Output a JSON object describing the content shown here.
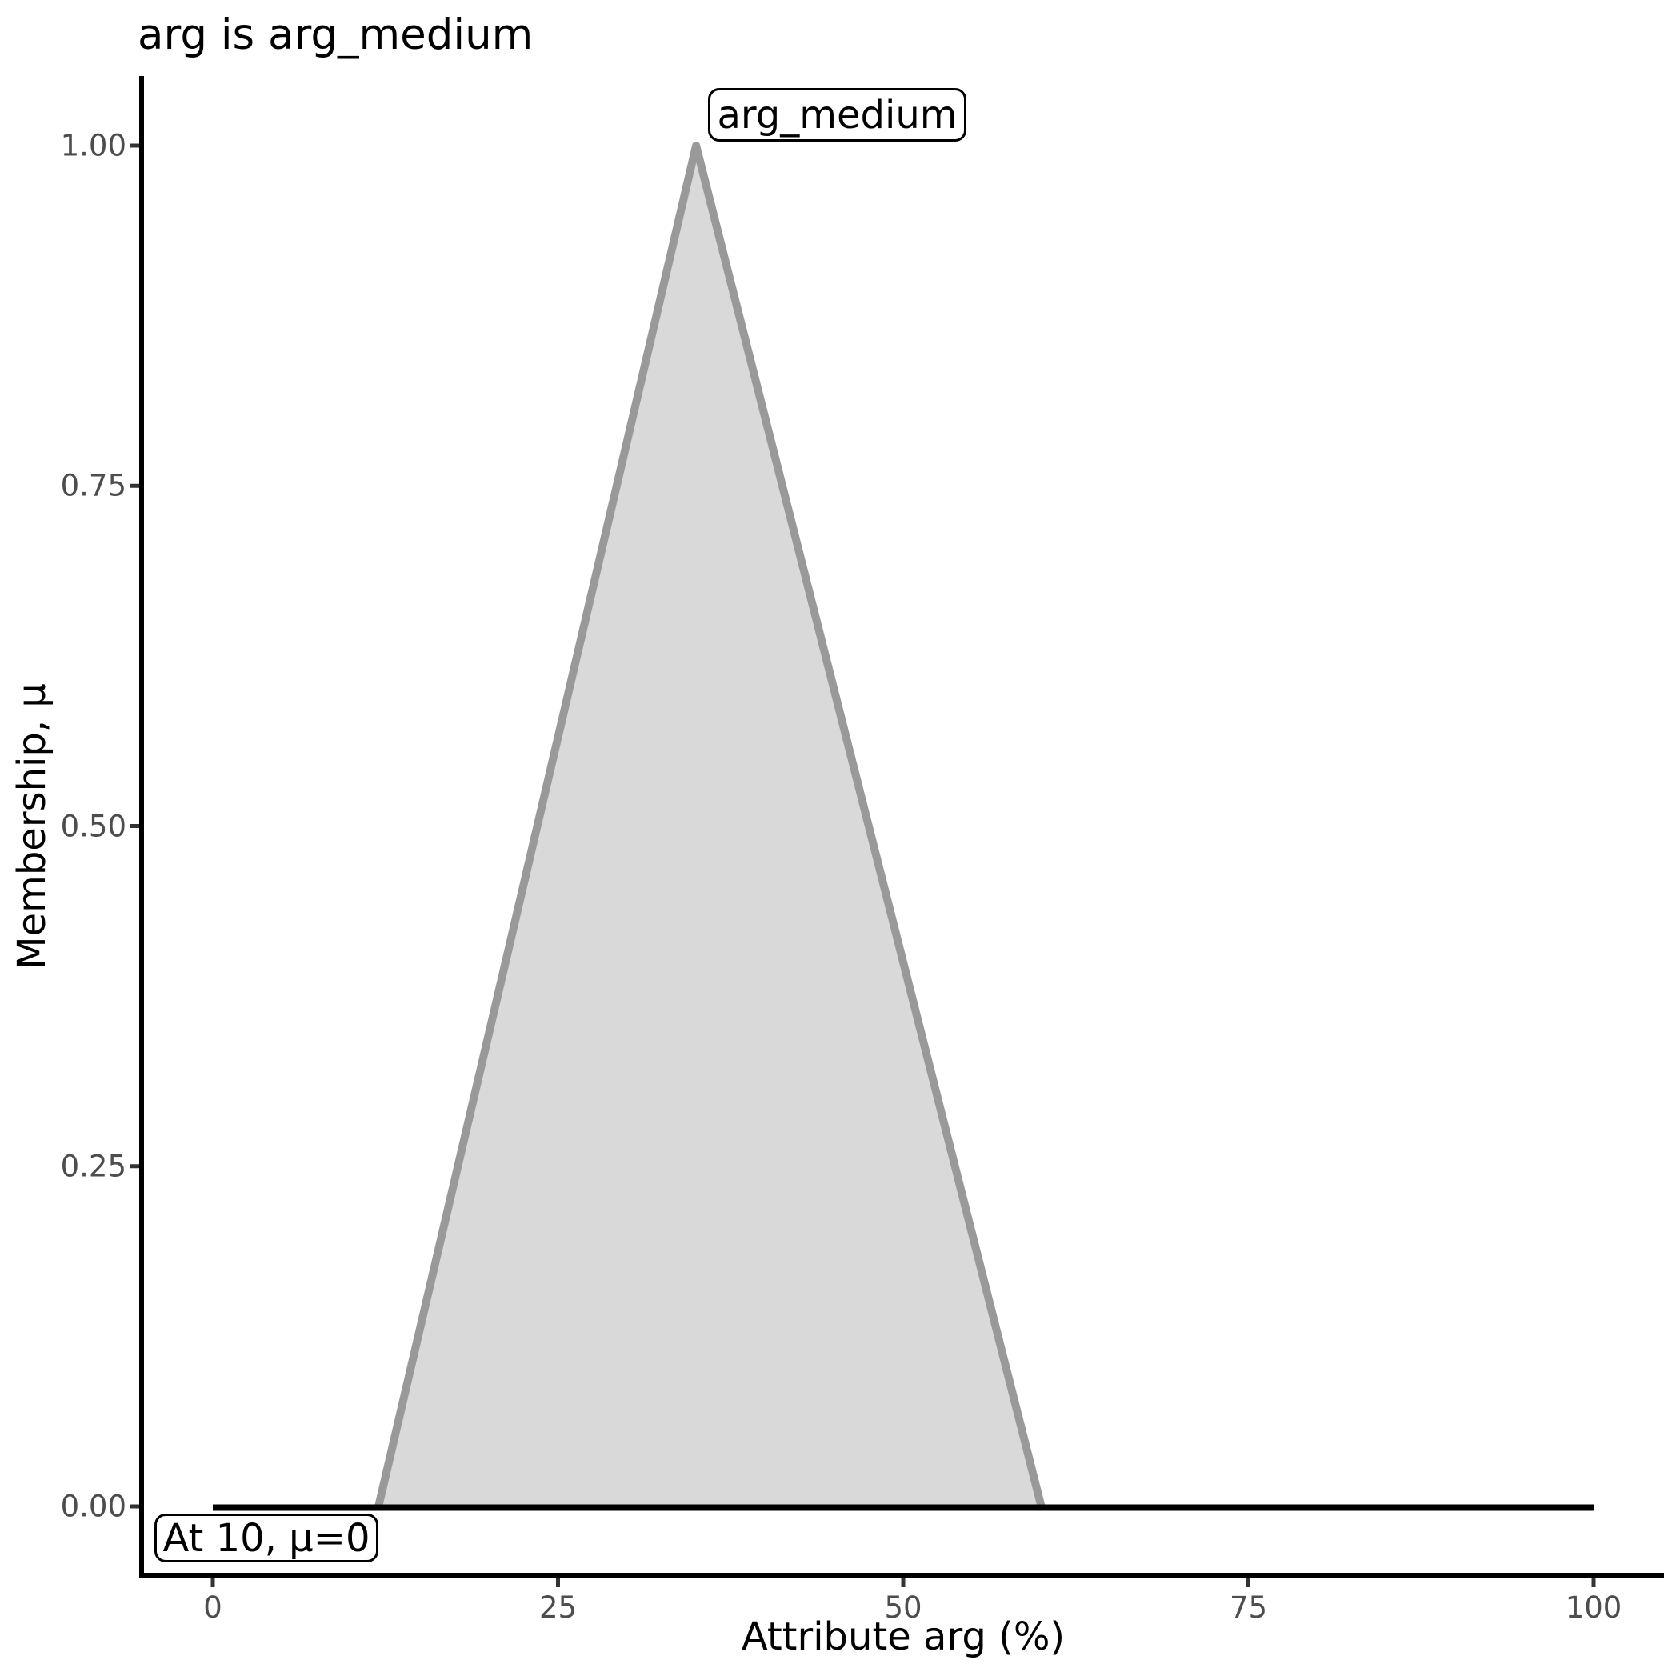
{
  "figure": {
    "title": "arg is arg_medium"
  },
  "axes": {
    "x": {
      "label": "Attribute arg (%)",
      "min": 0,
      "max": 100,
      "ticks": [
        {
          "v": 0,
          "label": "0"
        },
        {
          "v": 25,
          "label": "25"
        },
        {
          "v": 50,
          "label": "50"
        },
        {
          "v": 75,
          "label": "75"
        },
        {
          "v": 100,
          "label": "100"
        }
      ]
    },
    "y": {
      "label": "Membership, μ",
      "min": 0,
      "max": 1,
      "ticks": [
        {
          "v": 0.0,
          "label": "0.00"
        },
        {
          "v": 0.25,
          "label": "0.25"
        },
        {
          "v": 0.5,
          "label": "0.50"
        },
        {
          "v": 0.75,
          "label": "0.75"
        },
        {
          "v": 1.0,
          "label": "1.00"
        }
      ]
    }
  },
  "chart_data": {
    "type": "area",
    "title": "arg is arg_medium",
    "xlabel": "Attribute arg (%)",
    "ylabel": "Membership, μ",
    "xlim": [
      0,
      100
    ],
    "ylim": [
      0,
      1
    ],
    "grid": false,
    "series": [
      {
        "name": "arg_medium",
        "shape": "triangular membership function",
        "x": [
          12,
          35,
          60
        ],
        "y": [
          0,
          1,
          0
        ],
        "fill_color": "#d9d9d9",
        "stroke_color": "#999999"
      }
    ],
    "baseline": {
      "description": "membership = 0 line across universe",
      "x": [
        0,
        100
      ],
      "y": [
        0,
        0
      ],
      "color": "#000000"
    },
    "annotations": [
      {
        "text": "arg_medium",
        "attached_to": "peak of triangle",
        "x": 35,
        "mu": 1.0
      },
      {
        "text": "At 10, μ=0",
        "evaluated_at": 10,
        "mu": 0
      }
    ]
  },
  "labels": {
    "set_label": "arg_medium",
    "value_annotation": "At 10, μ=0"
  },
  "colors": {
    "background": "#ffffff",
    "triangle_fill": "#d9d9d9",
    "triangle_stroke": "#999999",
    "baseline": "#000000",
    "spine": "#000000",
    "tick_mark": "#333333",
    "tick_label": "#4d4d4d",
    "text": "#000000"
  }
}
